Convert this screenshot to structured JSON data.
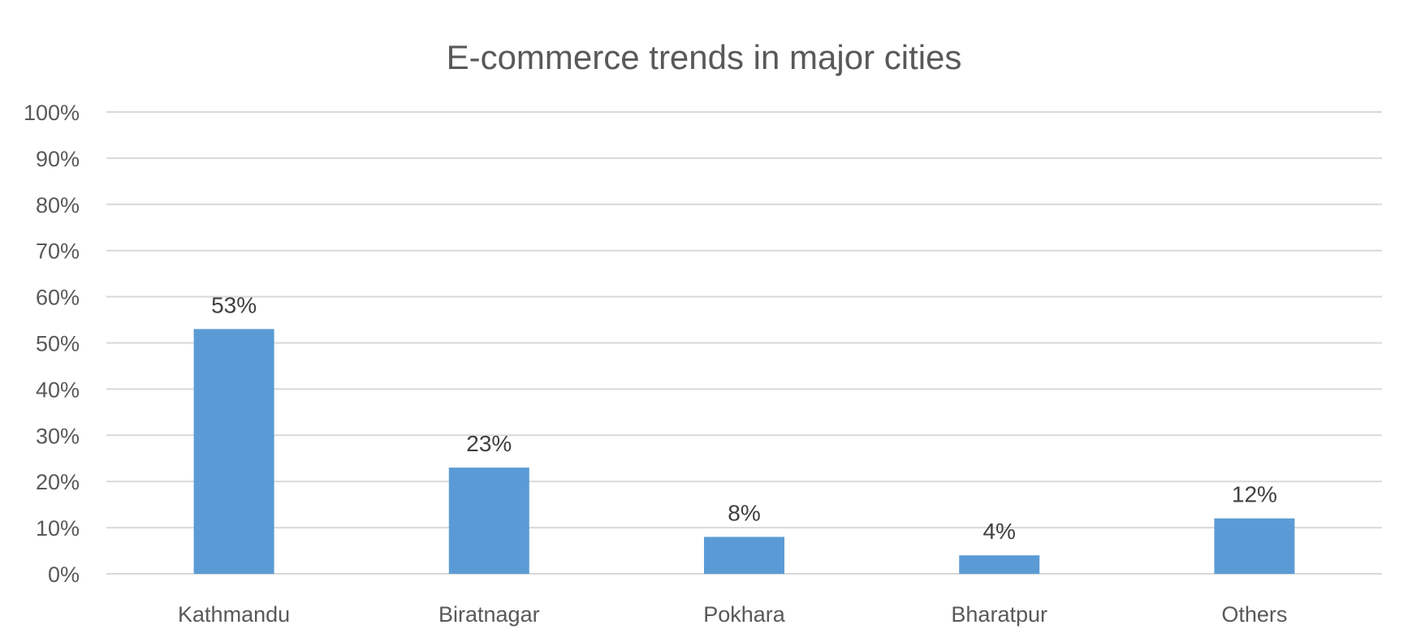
{
  "chart_data": {
    "type": "bar",
    "title": "E-commerce trends in major cities",
    "xlabel": "",
    "ylabel": "",
    "categories": [
      "Kathmandu",
      "Biratnagar",
      "Pokhara",
      "Bharatpur",
      "Others"
    ],
    "values": [
      53,
      23,
      8,
      4,
      12
    ],
    "data_labels": [
      "53%",
      "23%",
      "8%",
      "4%",
      "12%"
    ],
    "ylim": [
      0,
      100
    ],
    "yticks": [
      0,
      10,
      20,
      30,
      40,
      50,
      60,
      70,
      80,
      90,
      100
    ],
    "ytick_labels": [
      "0%",
      "10%",
      "20%",
      "30%",
      "40%",
      "50%",
      "60%",
      "70%",
      "80%",
      "90%",
      "100%"
    ],
    "grid": true,
    "legend": "none",
    "bar_color": "#5b9bd5"
  }
}
